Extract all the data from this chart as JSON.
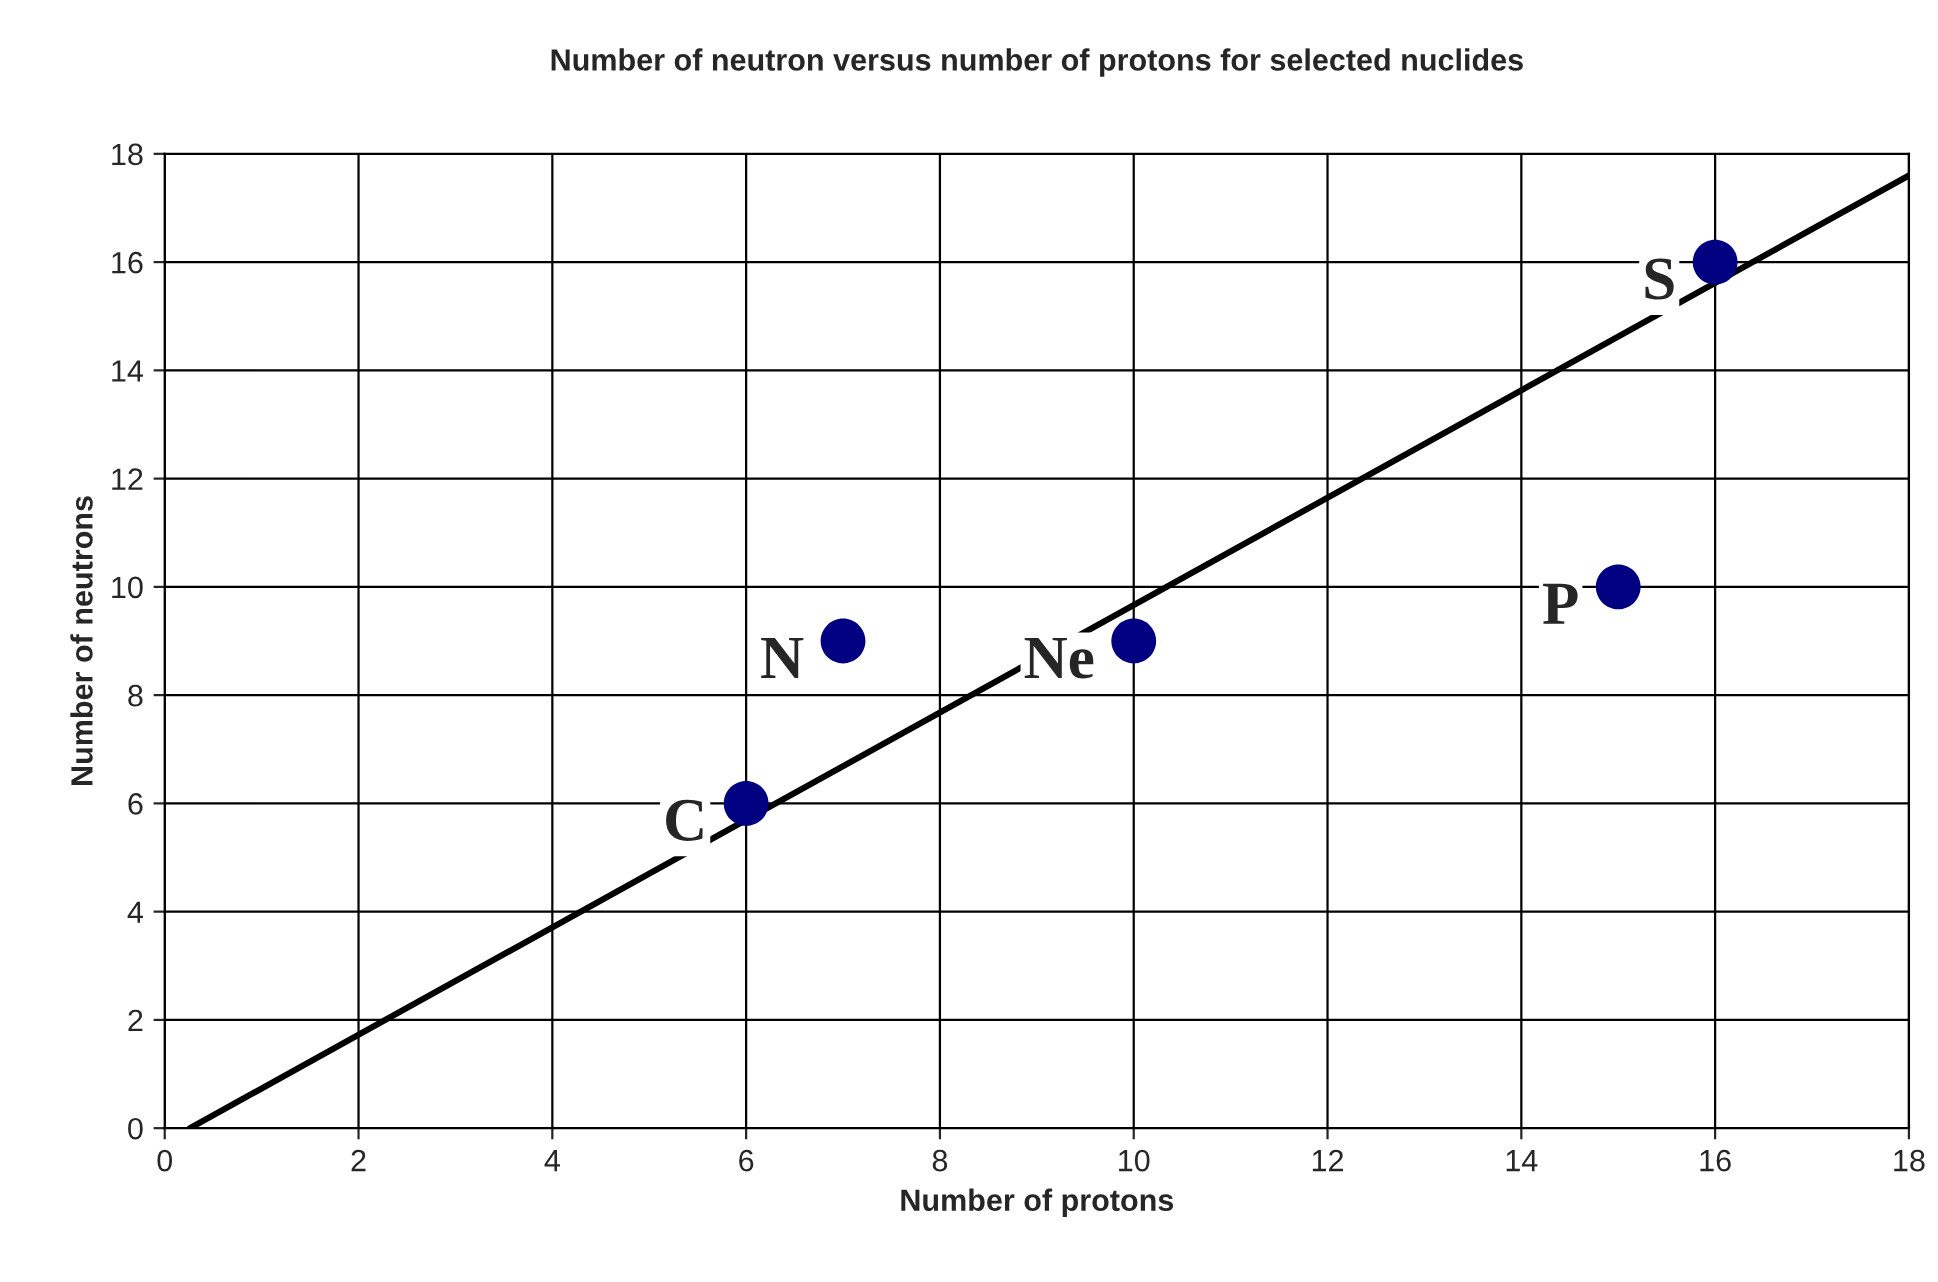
{
  "chart_data": {
    "type": "scatter",
    "title": "Number of neutron versus number of protons for selected nuclides",
    "xlabel": "Number of protons",
    "ylabel": "Number of neutrons",
    "xlim": [
      0,
      18
    ],
    "ylim": [
      0,
      18
    ],
    "xticks": [
      0,
      2,
      4,
      6,
      8,
      10,
      12,
      14,
      16,
      18
    ],
    "yticks": [
      0,
      2,
      4,
      6,
      8,
      10,
      12,
      14,
      16,
      18
    ],
    "grid": true,
    "series": [
      {
        "type": "scatter",
        "marker": "circle",
        "color": "#000080",
        "x": [
          6,
          7,
          10,
          15,
          16
        ],
        "values": [
          6,
          9,
          9,
          10,
          16
        ]
      },
      {
        "type": "line",
        "color": "#000000",
        "x": [
          0.26,
          18
        ],
        "values": [
          0,
          17.6
        ]
      }
    ],
    "annotations": [
      {
        "text": "C",
        "x": 6,
        "y": 6
      },
      {
        "text": "N",
        "x": 7,
        "y": 9
      },
      {
        "text": "Ne",
        "x": 10,
        "y": 9
      },
      {
        "text": "P",
        "x": 15,
        "y": 10
      },
      {
        "text": "S",
        "x": 16,
        "y": 16
      }
    ]
  }
}
